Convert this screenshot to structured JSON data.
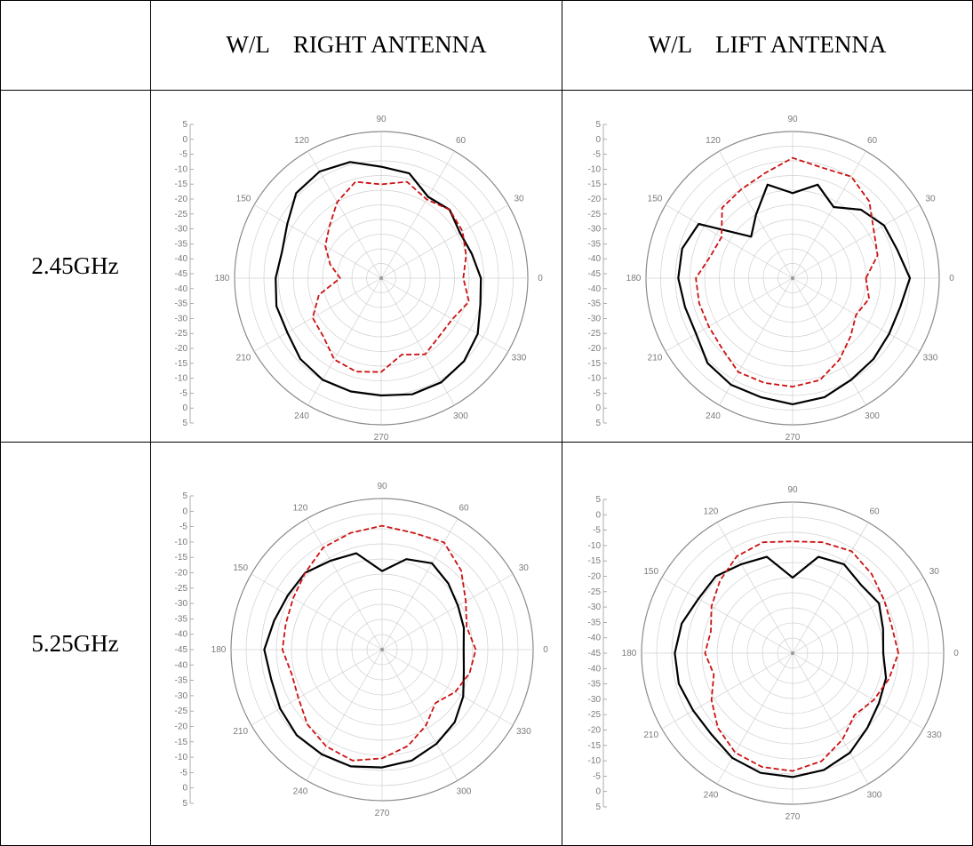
{
  "table": {
    "header": {
      "col1": "",
      "col2": "W/L    RIGHT ANTENNA",
      "col3": "W/L    LIFT ANTENNA"
    },
    "rows": [
      {
        "label": "2.45GHz"
      },
      {
        "label": "5.25GHz"
      }
    ]
  },
  "chart_data": [
    {
      "type": "polar-line",
      "row": "2.45GHz",
      "column": "W/L    RIGHT ANTENNA",
      "radial_ticks": [
        "5",
        "0",
        "-5",
        "-10",
        "-15",
        "-20",
        "-25",
        "-30",
        "-35",
        "-40",
        "-45",
        "-40",
        "-35",
        "-30",
        "-25",
        "-20",
        "-15",
        "-10",
        "-5",
        "0",
        "5"
      ],
      "angle_labels": [
        "0",
        "30",
        "60",
        "90",
        "120",
        "150",
        "180",
        "210",
        "240",
        "270",
        "300",
        "330"
      ],
      "rlim": [
        -45,
        5
      ],
      "angles_deg": [
        0,
        15,
        30,
        45,
        60,
        75,
        90,
        105,
        120,
        135,
        150,
        165,
        180,
        195,
        210,
        225,
        240,
        255,
        270,
        285,
        300,
        315,
        330,
        345
      ],
      "series": [
        {
          "color": "#000000",
          "style": "solid",
          "values": [
            -11,
            -13,
            -14,
            -12,
            -13,
            -8,
            -7,
            -4,
            -3,
            -4,
            -8,
            -10,
            -9,
            -8,
            -8,
            -6,
            -5,
            -5,
            -5,
            -4,
            -4,
            -5,
            -7,
            -10
          ]
        },
        {
          "color": "#cc1111",
          "style": "dashed",
          "values": [
            -17,
            -15,
            -13,
            -12,
            -14,
            -11,
            -13,
            -11,
            -15,
            -20,
            -23,
            -27,
            -31,
            -23,
            -18,
            -17,
            -13,
            -12,
            -13,
            -18,
            -15,
            -17,
            -17,
            -14
          ]
        }
      ],
      "grid": true
    },
    {
      "type": "polar-line",
      "row": "2.45GHz",
      "column": "W/L    LIFT ANTENNA",
      "radial_ticks": [
        "5",
        "0",
        "-5",
        "-10",
        "-15",
        "-20",
        "-25",
        "-30",
        "-35",
        "-40",
        "-45",
        "-40",
        "-35",
        "-30",
        "-25",
        "-20",
        "-15",
        "-10",
        "-5",
        "0",
        "5"
      ],
      "angle_labels": [
        "0",
        "30",
        "60",
        "90",
        "120",
        "150",
        "180",
        "210",
        "240",
        "270",
        "300",
        "330"
      ],
      "rlim": [
        -45,
        5
      ],
      "angles_deg": [
        0,
        15,
        30,
        45,
        60,
        75,
        90,
        105,
        120,
        135,
        150,
        165,
        180,
        195,
        210,
        225,
        240,
        255,
        270,
        285,
        300,
        315,
        330,
        345
      ],
      "series": [
        {
          "color": "#000000",
          "style": "solid",
          "values": [
            -5,
            -8,
            -9,
            -12,
            -17,
            -12,
            -16,
            -12,
            -20,
            -25,
            -8,
            -6,
            -6,
            -7,
            -7,
            -4,
            -3,
            -3,
            -2,
            -3,
            -5,
            -6,
            -7,
            -7
          ]
        },
        {
          "color": "#cc1111",
          "style": "dashed",
          "values": [
            -20,
            -15,
            -13,
            -8,
            -5,
            -6,
            -4,
            -8,
            -10,
            -11,
            -17,
            -16,
            -12,
            -12,
            -12,
            -11,
            -8,
            -8,
            -8,
            -9,
            -13,
            -17,
            -20,
            -18
          ]
        }
      ],
      "grid": true
    },
    {
      "type": "polar-line",
      "row": "5.25GHz",
      "column": "W/L    RIGHT ANTENNA",
      "radial_ticks": [
        "5",
        "0",
        "-5",
        "-10",
        "-15",
        "-20",
        "-25",
        "-30",
        "-35",
        "-40",
        "-45",
        "-40",
        "-35",
        "-30",
        "-25",
        "-20",
        "-15",
        "-10",
        "-5",
        "0",
        "5"
      ],
      "angle_labels": [
        "0",
        "30",
        "60",
        "90",
        "120",
        "150",
        "180",
        "210",
        "240",
        "270",
        "300",
        "330"
      ],
      "rlim": [
        -45,
        5
      ],
      "angles_deg": [
        0,
        15,
        30,
        45,
        60,
        75,
        90,
        105,
        120,
        135,
        150,
        165,
        180,
        195,
        210,
        225,
        240,
        255,
        270,
        285,
        300,
        315,
        330,
        345
      ],
      "series": [
        {
          "color": "#000000",
          "style": "solid",
          "values": [
            -18,
            -17,
            -16,
            -14,
            -12,
            -14,
            -19,
            -12,
            -11,
            -9,
            -9,
            -8,
            -6,
            -7,
            -6,
            -5,
            -5,
            -5,
            -6,
            -7,
            -9,
            -11,
            -14,
            -17
          ]
        },
        {
          "color": "#cc1111",
          "style": "dashed",
          "values": [
            -14,
            -16,
            -13,
            -8,
            -4,
            -5,
            -4,
            -5,
            -6,
            -9,
            -11,
            -12,
            -12,
            -14,
            -13,
            -10,
            -8,
            -7,
            -9,
            -12,
            -16,
            -20,
            -17,
            -15
          ]
        }
      ],
      "grid": true
    },
    {
      "type": "polar-line",
      "row": "5.25GHz",
      "column": "W/L    LIFT ANTENNA",
      "radial_ticks": [
        "5",
        "0",
        "-5",
        "-10",
        "-15",
        "-20",
        "-25",
        "-30",
        "-35",
        "-40",
        "-45",
        "-40",
        "-35",
        "-30",
        "-25",
        "-20",
        "-15",
        "-10",
        "-5",
        "0",
        "5"
      ],
      "angle_labels": [
        "0",
        "30",
        "60",
        "90",
        "120",
        "150",
        "180",
        "210",
        "240",
        "270",
        "300",
        "330"
      ],
      "rlim": [
        -45,
        5
      ],
      "angles_deg": [
        0,
        15,
        30,
        45,
        60,
        75,
        90,
        105,
        120,
        135,
        150,
        165,
        180,
        195,
        210,
        225,
        240,
        255,
        270,
        285,
        300,
        315,
        330,
        345
      ],
      "series": [
        {
          "color": "#000000",
          "style": "solid",
          "values": [
            -15,
            -14,
            -12,
            -13,
            -11,
            -12,
            -20,
            -12,
            -11,
            -9,
            -9,
            -7,
            -6,
            -6,
            -7,
            -7,
            -5,
            -4,
            -4,
            -5,
            -7,
            -10,
            -12,
            -13
          ]
        },
        {
          "color": "#cc1111",
          "style": "dashed",
          "values": [
            -10,
            -11,
            -10,
            -8,
            -6,
            -7,
            -8,
            -7,
            -8,
            -11,
            -14,
            -17,
            -16,
            -18,
            -14,
            -10,
            -7,
            -6,
            -6,
            -8,
            -12,
            -16,
            -14,
            -12
          ]
        }
      ],
      "grid": true
    }
  ]
}
